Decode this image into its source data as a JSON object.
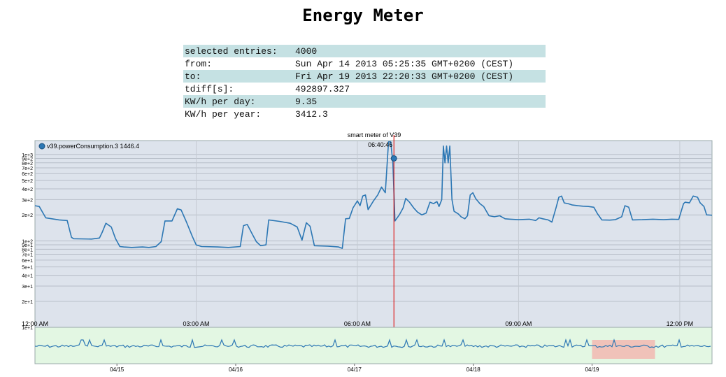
{
  "page": {
    "title": "Energy Meter"
  },
  "stats": [
    {
      "label": "selected entries:",
      "value": "4000"
    },
    {
      "label": "from:",
      "value": "Sun Apr 14 2013 05:25:35 GMT+0200 (CEST)"
    },
    {
      "label": "to:",
      "value": "Fri Apr 19 2013 22:20:33 GMT+0200 (CEST)"
    },
    {
      "label": "tdiff[s]:",
      "value": "492897.327"
    },
    {
      "label": "KW/h per day:",
      "value": "9.35"
    },
    {
      "label": "KW/h per year:",
      "value": "3412.3"
    }
  ],
  "chart_data": {
    "type": "line",
    "title": "smart meter of V39",
    "legend": {
      "text": "v39.powerConsumption.3 1446.4",
      "position": "top-left"
    },
    "crosshair_label": "06:40:46",
    "crosshair_x": 6.68,
    "scale": "log",
    "ylim": [
      10,
      1446
    ],
    "xlim": [
      0,
      12.6
    ],
    "x_unit": "hours after 12:00 AM",
    "x_ticks": [
      {
        "x": 0,
        "label": "12:00 AM"
      },
      {
        "x": 3,
        "label": "03:00 AM"
      },
      {
        "x": 6,
        "label": "06:00 AM"
      },
      {
        "x": 9,
        "label": "09:00 AM"
      },
      {
        "x": 12,
        "label": "12:00 PM"
      }
    ],
    "y_ticks": [
      {
        "y": 10,
        "label": "1e+1"
      },
      {
        "y": 20,
        "label": "2e+1"
      },
      {
        "y": 30,
        "label": "3e+1"
      },
      {
        "y": 40,
        "label": "4e+1"
      },
      {
        "y": 50,
        "label": "5e+1"
      },
      {
        "y": 60,
        "label": "6e+1"
      },
      {
        "y": 70,
        "label": "7e+1"
      },
      {
        "y": 80,
        "label": "8e+1"
      },
      {
        "y": 90,
        "label": "9e+1"
      },
      {
        "y": 100,
        "label": "1e+2"
      },
      {
        "y": 200,
        "label": "2e+2"
      },
      {
        "y": 300,
        "label": "3e+2"
      },
      {
        "y": 400,
        "label": "4e+2"
      },
      {
        "y": 500,
        "label": "5e+2"
      },
      {
        "y": 600,
        "label": "6e+2"
      },
      {
        "y": 700,
        "label": "7e+2"
      },
      {
        "y": 800,
        "label": "8e+2"
      },
      {
        "y": 900,
        "label": "9e+2"
      },
      {
        "y": 1000,
        "label": "1e+3"
      }
    ],
    "grid": true,
    "series": [
      {
        "color": "#2c77b4",
        "points": [
          [
            0,
            255
          ],
          [
            0.08,
            250
          ],
          [
            0.2,
            185
          ],
          [
            0.45,
            175
          ],
          [
            0.6,
            172
          ],
          [
            0.68,
            110
          ],
          [
            0.72,
            106
          ],
          [
            1.05,
            105
          ],
          [
            1.2,
            108
          ],
          [
            1.25,
            125
          ],
          [
            1.32,
            160
          ],
          [
            1.42,
            145
          ],
          [
            1.5,
            106
          ],
          [
            1.58,
            86
          ],
          [
            1.65,
            85
          ],
          [
            1.8,
            84
          ],
          [
            2.0,
            85
          ],
          [
            2.12,
            84
          ],
          [
            2.25,
            86
          ],
          [
            2.35,
            98
          ],
          [
            2.42,
            170
          ],
          [
            2.55,
            170
          ],
          [
            2.65,
            235
          ],
          [
            2.72,
            228
          ],
          [
            2.82,
            165
          ],
          [
            2.93,
            112
          ],
          [
            3.0,
            90
          ],
          [
            3.1,
            86
          ],
          [
            3.4,
            85
          ],
          [
            3.6,
            84
          ],
          [
            3.82,
            86
          ],
          [
            3.88,
            150
          ],
          [
            3.95,
            155
          ],
          [
            4.05,
            118
          ],
          [
            4.12,
            98
          ],
          [
            4.2,
            88
          ],
          [
            4.3,
            90
          ],
          [
            4.35,
            175
          ],
          [
            4.55,
            168
          ],
          [
            4.75,
            160
          ],
          [
            4.88,
            145
          ],
          [
            4.97,
            102
          ],
          [
            5.05,
            162
          ],
          [
            5.12,
            148
          ],
          [
            5.2,
            88
          ],
          [
            5.45,
            87
          ],
          [
            5.65,
            85
          ],
          [
            5.72,
            82
          ],
          [
            5.78,
            180
          ],
          [
            5.85,
            182
          ],
          [
            5.92,
            242
          ],
          [
            6.0,
            290
          ],
          [
            6.05,
            255
          ],
          [
            6.1,
            330
          ],
          [
            6.15,
            340
          ],
          [
            6.2,
            230
          ],
          [
            6.3,
            290
          ],
          [
            6.38,
            340
          ],
          [
            6.45,
            420
          ],
          [
            6.52,
            360
          ],
          [
            6.58,
            1400
          ],
          [
            6.62,
            1400
          ],
          [
            6.66,
            800
          ],
          [
            6.7,
            170
          ],
          [
            6.78,
            200
          ],
          [
            6.85,
            240
          ],
          [
            6.9,
            310
          ],
          [
            6.97,
            280
          ],
          [
            7.05,
            240
          ],
          [
            7.12,
            215
          ],
          [
            7.2,
            200
          ],
          [
            7.28,
            210
          ],
          [
            7.35,
            280
          ],
          [
            7.42,
            270
          ],
          [
            7.48,
            285
          ],
          [
            7.52,
            250
          ],
          [
            7.57,
            300
          ],
          [
            7.6,
            1250
          ],
          [
            7.63,
            800
          ],
          [
            7.66,
            1250
          ],
          [
            7.69,
            800
          ],
          [
            7.72,
            1250
          ],
          [
            7.76,
            300
          ],
          [
            7.8,
            220
          ],
          [
            7.88,
            205
          ],
          [
            7.93,
            190
          ],
          [
            8.0,
            180
          ],
          [
            8.05,
            195
          ],
          [
            8.1,
            340
          ],
          [
            8.15,
            360
          ],
          [
            8.2,
            310
          ],
          [
            8.28,
            270
          ],
          [
            8.35,
            250
          ],
          [
            8.45,
            195
          ],
          [
            8.55,
            190
          ],
          [
            8.65,
            195
          ],
          [
            8.75,
            180
          ],
          [
            8.85,
            178
          ],
          [
            9.0,
            176
          ],
          [
            9.2,
            178
          ],
          [
            9.32,
            172
          ],
          [
            9.38,
            185
          ],
          [
            9.45,
            180
          ],
          [
            9.55,
            175
          ],
          [
            9.62,
            165
          ],
          [
            9.7,
            245
          ],
          [
            9.75,
            320
          ],
          [
            9.8,
            330
          ],
          [
            9.85,
            275
          ],
          [
            9.92,
            270
          ],
          [
            10.0,
            260
          ],
          [
            10.1,
            255
          ],
          [
            10.2,
            252
          ],
          [
            10.3,
            250
          ],
          [
            10.4,
            245
          ],
          [
            10.47,
            205
          ],
          [
            10.55,
            175
          ],
          [
            10.7,
            174
          ],
          [
            10.8,
            176
          ],
          [
            10.92,
            190
          ],
          [
            10.98,
            255
          ],
          [
            11.05,
            245
          ],
          [
            11.12,
            175
          ],
          [
            11.3,
            176
          ],
          [
            11.5,
            178
          ],
          [
            11.7,
            176
          ],
          [
            11.85,
            178
          ],
          [
            11.98,
            177
          ],
          [
            12.07,
            270
          ],
          [
            12.1,
            280
          ],
          [
            12.18,
            275
          ],
          [
            12.25,
            330
          ],
          [
            12.33,
            320
          ],
          [
            12.38,
            275
          ],
          [
            12.45,
            250
          ],
          [
            12.5,
            200
          ],
          [
            12.6,
            198
          ]
        ]
      }
    ],
    "overview": {
      "date_ticks": [
        {
          "x": 14.92,
          "label": "04/15"
        },
        {
          "x": 15.92,
          "label": "04/16"
        },
        {
          "x": 16.92,
          "label": "04/17"
        },
        {
          "x": 17.92,
          "label": "04/18"
        },
        {
          "x": 18.92,
          "label": "04/19"
        }
      ],
      "x_unit": "day of April 2013 (fractional)",
      "xlim": [
        14.23,
        19.93
      ],
      "selection": [
        18.92,
        19.45
      ]
    }
  }
}
